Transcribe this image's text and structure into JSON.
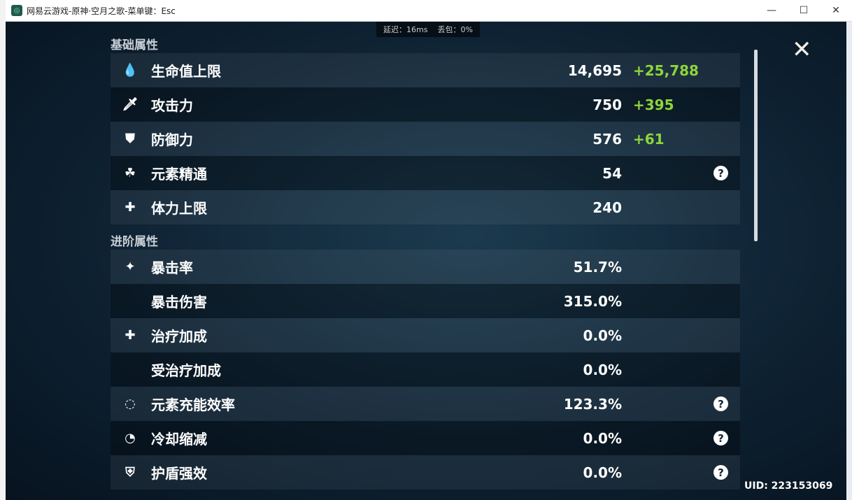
{
  "window": {
    "title": "网易云游戏-原神·空月之歌-菜单键：Esc",
    "minimize": "—",
    "maximize": "☐",
    "close": "✕"
  },
  "net": {
    "latency": "延迟：16ms",
    "loss": "丢包：0%"
  },
  "basic": {
    "header": "基础属性",
    "rows": [
      {
        "icon": "hp-drop-icon",
        "glyph": "💧",
        "label": "生命值上限",
        "value": "14,695",
        "bonus": "+25,788"
      },
      {
        "icon": "sword-icon",
        "glyph": "🗡",
        "label": "攻击力",
        "value": "750",
        "bonus": "+395"
      },
      {
        "icon": "shield-icon",
        "glyph": "⛊",
        "label": "防御力",
        "value": "576",
        "bonus": "+61"
      },
      {
        "icon": "elemental-mastery-icon",
        "glyph": "☘",
        "label": "元素精通",
        "value": "54",
        "bonus": "",
        "help": true
      },
      {
        "icon": "stamina-icon",
        "glyph": "✚",
        "label": "体力上限",
        "value": "240",
        "bonus": ""
      }
    ]
  },
  "advanced": {
    "header": "进阶属性",
    "rows": [
      {
        "icon": "crit-rate-icon",
        "glyph": "✦",
        "label": "暴击率",
        "value": "51.7%"
      },
      {
        "icon": "",
        "glyph": "",
        "label": "暴击伤害",
        "value": "315.0%"
      },
      {
        "icon": "healing-bonus-icon",
        "glyph": "✚",
        "label": "治疗加成",
        "value": "0.0%"
      },
      {
        "icon": "",
        "glyph": "",
        "label": "受治疗加成",
        "value": "0.0%"
      },
      {
        "icon": "energy-recharge-icon",
        "glyph": "◌",
        "label": "元素充能效率",
        "value": "123.3%",
        "help": true
      },
      {
        "icon": "cd-reduction-icon",
        "glyph": "◔",
        "label": "冷却缩减",
        "value": "0.0%",
        "help": true
      },
      {
        "icon": "shield-strength-icon",
        "glyph": "⛨",
        "label": "护盾强效",
        "value": "0.0%",
        "help": true
      }
    ]
  },
  "help_glyph": "?",
  "close_glyph": "✕",
  "uid": "UID: 223153069"
}
